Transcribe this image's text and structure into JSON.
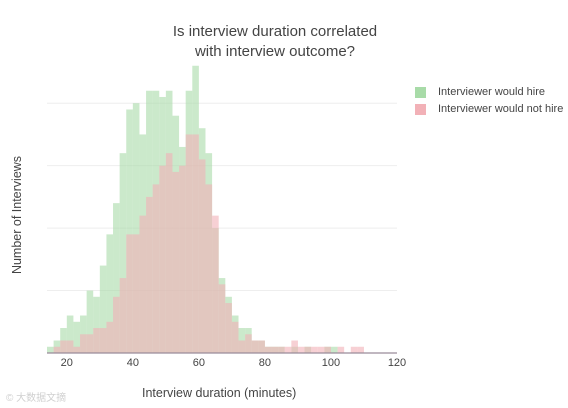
{
  "chart_data": {
    "type": "histogram",
    "title_line1": "Is interview duration correlated",
    "title_line2": "with interview outcome?",
    "xlabel": "Interview duration (minutes)",
    "ylabel": "Number of Interviews",
    "xlim": [
      14,
      120
    ],
    "ylim": [
      0,
      45
    ],
    "grid": true,
    "legend_position": "top-right",
    "bin_width": 2,
    "bin_start": 14,
    "x_ticks": [
      20,
      40,
      60,
      80,
      100,
      120
    ],
    "series": [
      {
        "name": "Interviewer would hire",
        "color": "#a8dba8",
        "values": [
          1,
          2,
          4,
          6,
          5,
          6,
          10,
          9,
          14,
          19,
          24,
          32,
          39,
          40,
          35,
          42,
          42,
          41,
          42,
          38,
          33,
          42,
          46,
          36,
          32,
          20,
          12,
          9,
          6,
          4,
          4,
          2,
          2,
          1,
          1,
          1,
          0,
          1,
          0,
          1,
          0,
          0,
          1,
          1,
          0,
          0,
          0,
          0,
          0,
          0,
          0,
          0,
          0
        ]
      },
      {
        "name": "Interviewer would not hire",
        "color": "#f2b1b7",
        "values": [
          0,
          1,
          2,
          2,
          1,
          3,
          3,
          4,
          4,
          5,
          9,
          12,
          19,
          19,
          22,
          25,
          27,
          30,
          32,
          29,
          30,
          35,
          35,
          31,
          27,
          22,
          11,
          8,
          5,
          2,
          3,
          2,
          2,
          1,
          1,
          1,
          1,
          2,
          1,
          1,
          1,
          1,
          1,
          0,
          1,
          0,
          1,
          1,
          0,
          0,
          0,
          0,
          0
        ]
      }
    ]
  },
  "watermark": "© 大数据文摘"
}
